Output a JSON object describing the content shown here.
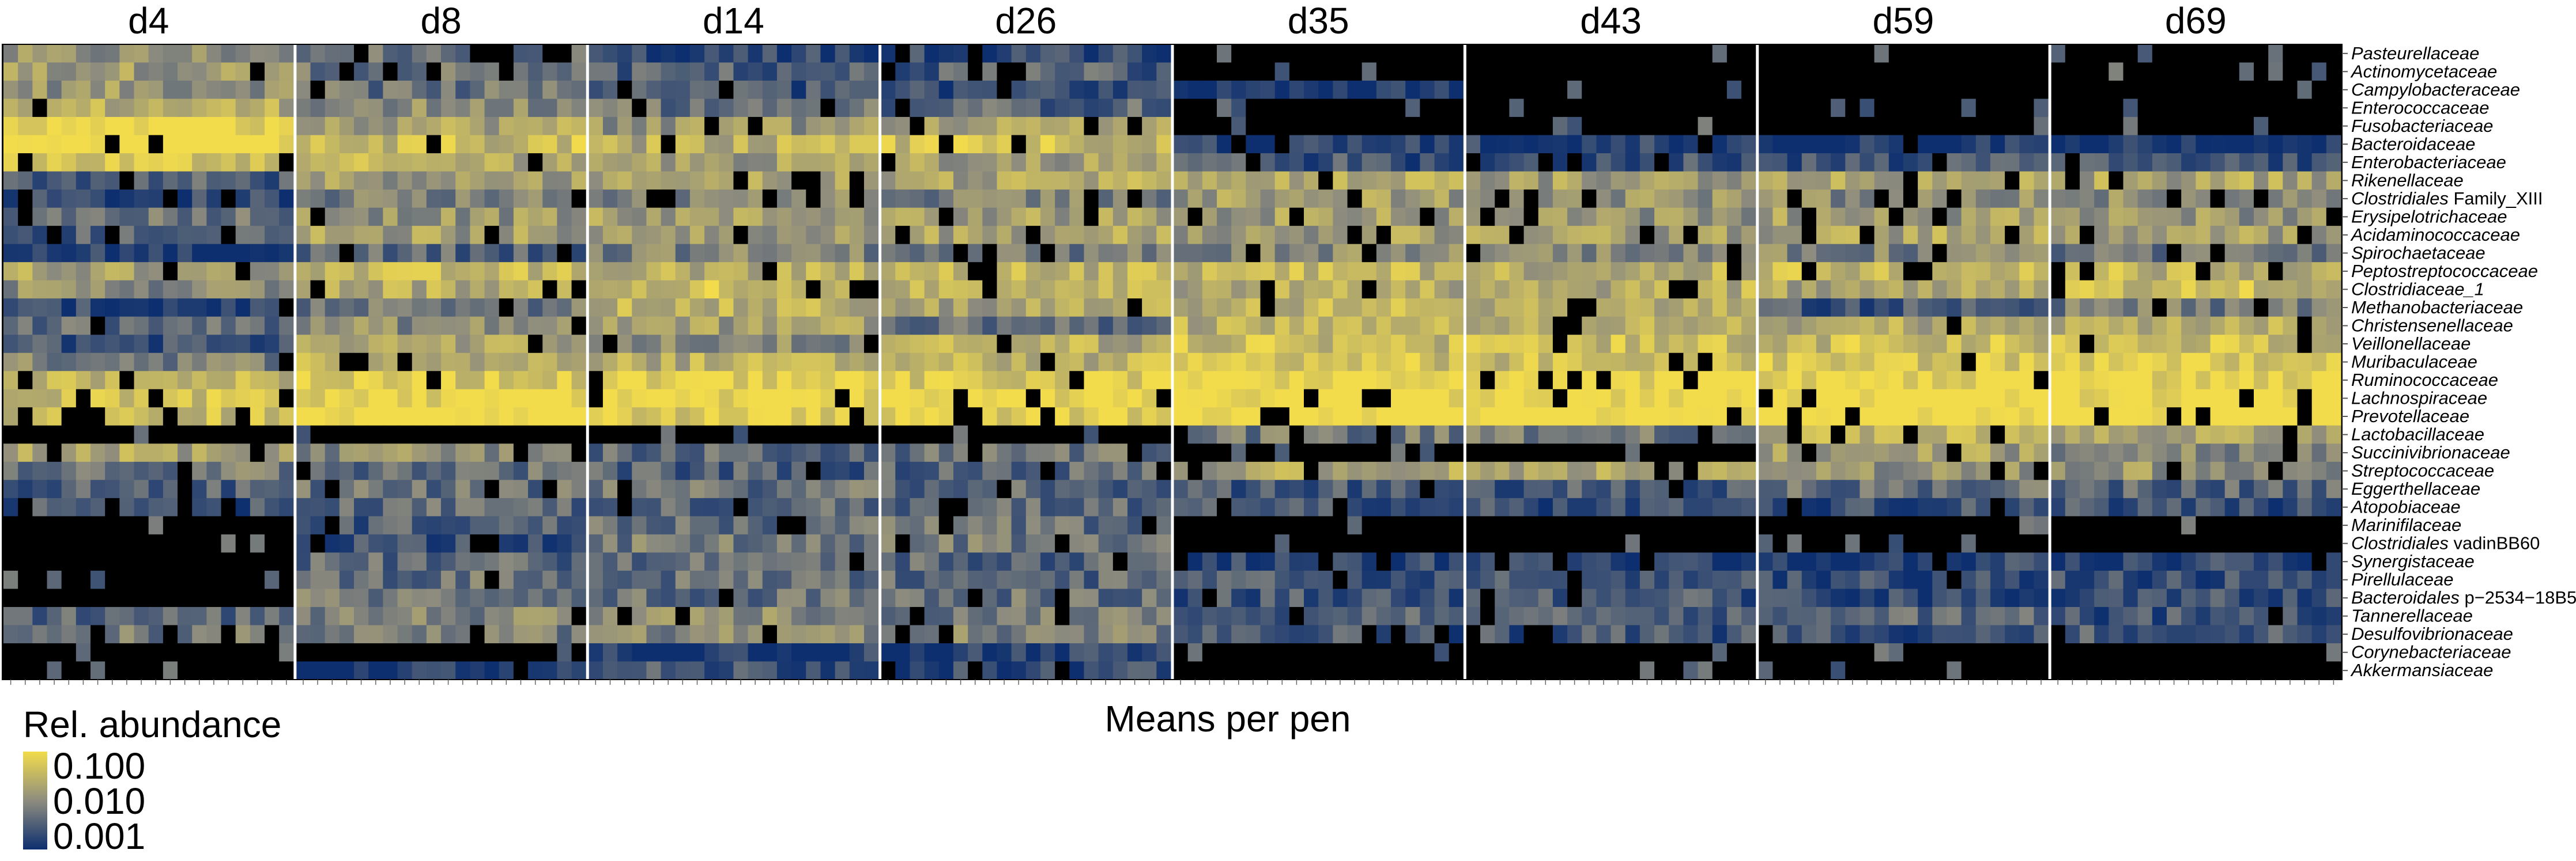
{
  "chart_data": {
    "type": "heatmap",
    "title": "",
    "xlabel": "Means per pen",
    "ylabel": "",
    "panels": [
      "d4",
      "d8",
      "d14",
      "d26",
      "d35",
      "d43",
      "d59",
      "d69"
    ],
    "pens_per_panel": 20,
    "rows": [
      {
        "label": "Pasteurellaceae"
      },
      {
        "label": "Actinomycetaceae"
      },
      {
        "label": "Campylobacteraceae"
      },
      {
        "label": "Enterococcaceae"
      },
      {
        "label": "Fusobacteriaceae"
      },
      {
        "label": "Bacteroidaceae"
      },
      {
        "label": "Enterobacteriaceae"
      },
      {
        "label": "Rikenellaceae"
      },
      {
        "label": "Family_XIII",
        "prefix": "Clostridiales"
      },
      {
        "label": "Erysipelotrichaceae"
      },
      {
        "label": "Acidaminococcaceae"
      },
      {
        "label": "Spirochaetaceae"
      },
      {
        "label": "Peptostreptococcaceae"
      },
      {
        "label": "Clostridiaceae_1"
      },
      {
        "label": "Methanobacteriaceae"
      },
      {
        "label": "Christensenellaceae"
      },
      {
        "label": "Veillonellaceae"
      },
      {
        "label": "Muribaculaceae"
      },
      {
        "label": "Ruminococcaceae"
      },
      {
        "label": "Lachnospiraceae"
      },
      {
        "label": "Prevotellaceae"
      },
      {
        "label": "Lactobacillaceae"
      },
      {
        "label": "Succinivibrionaceae"
      },
      {
        "label": "Streptococcaceae"
      },
      {
        "label": "Eggerthellaceae"
      },
      {
        "label": "Atopobiaceae"
      },
      {
        "label": "Marinifilaceae"
      },
      {
        "label": "vadinBB60",
        "prefix": "Clostridiales"
      },
      {
        "label": "Synergistaceae"
      },
      {
        "label": "Pirellulaceae"
      },
      {
        "label": "p−2534−18B5",
        "prefix": "Bacteroidales"
      },
      {
        "label": "Tannerellaceae"
      },
      {
        "label": "Desulfovibrionaceae"
      },
      {
        "label": "Corynebacteriaceae"
      },
      {
        "label": "Akkermansiaceae"
      }
    ],
    "color_scale": {
      "type": "log",
      "title": "Rel. abundance",
      "breaks": [
        0.1,
        0.01,
        0.001
      ],
      "break_labels": [
        "0.100",
        "0.010",
        "0.001"
      ],
      "colors": [
        "#f2dc4c",
        "#8e8c7e",
        "#0d2f6f"
      ],
      "zero_color": "#000000"
    },
    "typical_log10_abundance": {
      "rows": [
        "Pasteurellaceae",
        "Actinomycetaceae",
        "Campylobacteraceae",
        "Enterococcaceae",
        "Fusobacteriaceae",
        "Bacteroidaceae",
        "Enterobacteriaceae",
        "Rikenellaceae",
        "Clostridiales Family_XIII",
        "Erysipelotrichaceae",
        "Acidaminococcaceae",
        "Spirochaetaceae",
        "Peptostreptococcaceae",
        "Clostridiaceae_1",
        "Methanobacteriaceae",
        "Christensenellaceae",
        "Veillonellaceae",
        "Muribaculaceae",
        "Ruminococcaceae",
        "Lachnospiraceae",
        "Prevotellaceae",
        "Lactobacillaceae",
        "Succinivibrionaceae",
        "Streptococcaceae",
        "Eggerthellaceae",
        "Atopobiaceae",
        "Marinifilaceae",
        "Clostridiales vadinBB60",
        "Synergistaceae",
        "Pirellulaceae",
        "Bacteroidales p−2534−18B5",
        "Tannerellaceae",
        "Desulfovibrionaceae",
        "Corynebacteriaceae",
        "Akkermansiaceae"
      ],
      "columns": [
        "d4",
        "d8",
        "d14",
        "d26",
        "d35",
        "d43",
        "d59",
        "d69"
      ],
      "values": [
        [
          -2.0,
          -2.3,
          -2.8,
          -2.8,
          null,
          null,
          null,
          null
        ],
        [
          -1.8,
          -2.2,
          -2.5,
          -2.5,
          null,
          null,
          null,
          null
        ],
        [
          -1.9,
          -2.3,
          -2.6,
          -2.7,
          -3.0,
          null,
          null,
          null
        ],
        [
          -1.6,
          -2.0,
          -2.3,
          -2.4,
          null,
          null,
          null,
          null
        ],
        [
          -1.0,
          -1.7,
          -1.9,
          -1.8,
          null,
          null,
          null,
          null
        ],
        [
          -0.9,
          -1.4,
          -1.6,
          -1.4,
          -2.8,
          -2.8,
          -3.0,
          -3.0
        ],
        [
          -1.3,
          -1.6,
          -1.8,
          -1.8,
          -2.6,
          -2.6,
          -2.6,
          -2.6
        ],
        [
          -2.5,
          -1.8,
          -1.8,
          -1.7,
          -1.7,
          -1.8,
          -1.7,
          -1.7
        ],
        [
          -2.8,
          -2.1,
          -2.0,
          -2.1,
          -1.8,
          -1.9,
          -2.0,
          -2.0
        ],
        [
          -2.2,
          -1.9,
          -1.8,
          -1.8,
          -1.8,
          -1.9,
          -1.8,
          -1.9
        ],
        [
          -2.5,
          -1.8,
          -1.8,
          -1.7,
          -1.8,
          -1.8,
          -1.7,
          -1.8
        ],
        [
          -2.9,
          -2.4,
          -2.1,
          -2.2,
          -2.0,
          -2.0,
          -2.1,
          -2.2
        ],
        [
          -1.7,
          -1.5,
          -1.6,
          -1.5,
          -1.5,
          -1.6,
          -1.4,
          -1.5
        ],
        [
          -2.0,
          -1.6,
          -1.3,
          -1.4,
          -1.6,
          -1.6,
          -1.7,
          -1.4
        ],
        [
          -2.8,
          -2.2,
          -1.6,
          -1.7,
          -1.5,
          -1.6,
          -2.6,
          -2.2
        ],
        [
          -2.4,
          -2.0,
          -1.8,
          -2.3,
          -1.6,
          -1.6,
          -1.6,
          -1.6
        ],
        [
          -2.6,
          -1.7,
          -2.0,
          -1.6,
          -1.4,
          -1.4,
          -1.4,
          -1.4
        ],
        [
          -2.1,
          -1.6,
          -1.6,
          -1.5,
          -1.3,
          -1.4,
          -1.3,
          -1.3
        ],
        [
          -1.5,
          -1.2,
          -1.1,
          -1.2,
          -1.0,
          -1.0,
          -1.0,
          -1.0
        ],
        [
          -1.3,
          -1.0,
          -1.0,
          -1.0,
          -0.9,
          -0.9,
          -0.9,
          -0.9
        ],
        [
          -1.4,
          -0.8,
          -1.2,
          -1.1,
          -0.8,
          -0.8,
          -0.8,
          -0.8
        ],
        [
          null,
          null,
          null,
          null,
          -2.2,
          -2.2,
          -1.5,
          -1.8
        ],
        [
          -1.7,
          -2.0,
          -2.4,
          -2.3,
          null,
          null,
          -1.8,
          -2.0
        ],
        [
          -2.2,
          -2.3,
          -2.5,
          -2.4,
          -1.7,
          -1.7,
          -1.9,
          -1.9
        ],
        [
          -2.5,
          -2.3,
          -2.3,
          -2.4,
          -2.5,
          -2.5,
          -2.3,
          -2.4
        ],
        [
          -2.6,
          -2.4,
          -2.4,
          -2.4,
          -2.6,
          -2.7,
          -2.6,
          -2.6
        ],
        [
          null,
          -2.5,
          -2.3,
          -2.3,
          null,
          null,
          null,
          null
        ],
        [
          null,
          -2.6,
          -2.2,
          -2.2,
          null,
          null,
          null,
          null
        ],
        [
          null,
          -2.4,
          -2.3,
          -2.4,
          -2.8,
          -2.8,
          -2.8,
          -2.8
        ],
        [
          null,
          -2.3,
          -2.3,
          -2.4,
          -2.6,
          -2.6,
          -2.7,
          -2.7
        ],
        [
          null,
          -2.2,
          -2.3,
          -2.3,
          -2.6,
          -2.6,
          -2.8,
          -2.7
        ],
        [
          -2.4,
          -2.1,
          -2.0,
          -2.2,
          -2.4,
          -2.5,
          -2.4,
          -2.6
        ],
        [
          -2.2,
          -2.2,
          -2.0,
          -2.1,
          -2.6,
          -2.6,
          -2.6,
          -2.5
        ],
        [
          null,
          null,
          -2.8,
          -2.8,
          null,
          null,
          null,
          null
        ],
        [
          null,
          -2.9,
          -2.6,
          -2.7,
          null,
          null,
          null,
          null
        ]
      ]
    }
  }
}
